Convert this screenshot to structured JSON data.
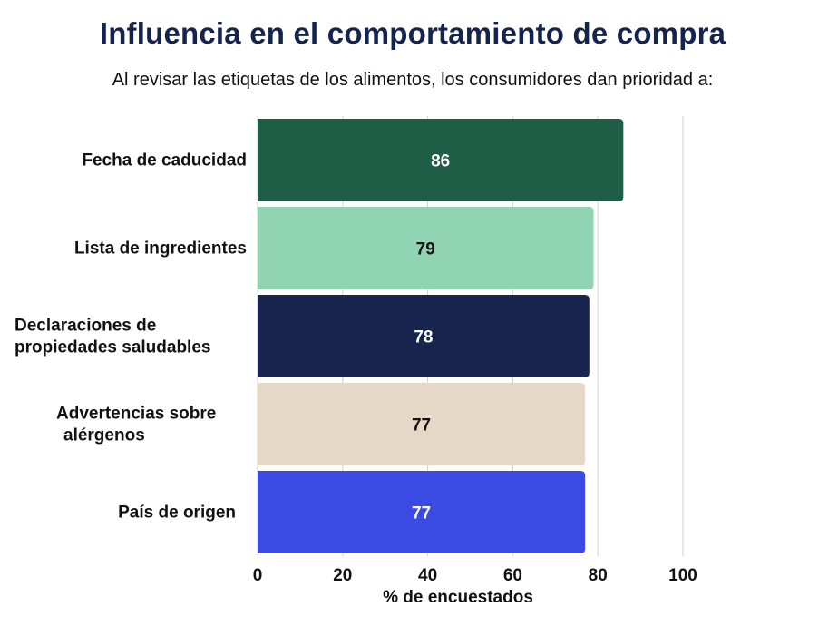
{
  "chart_data": {
    "type": "bar",
    "orientation": "horizontal",
    "title": "Influencia en el comportamiento de compra",
    "subtitle": "Al revisar las etiquetas de los alimentos, los consumidores dan prioridad a:",
    "xlabel": "% de encuestados",
    "ylabel": "",
    "xlim": [
      0,
      100
    ],
    "xticks": [
      "0",
      "20",
      "40",
      "60",
      "80",
      "100"
    ],
    "grid": true,
    "categories": [
      "Fecha de caducidad",
      "Lista de ingredientes",
      "Declaraciones de propiedades saludables",
      "Advertencias sobre alérgenos",
      "País de origen"
    ],
    "category_lines": [
      [
        "Fecha de caducidad"
      ],
      [
        "Lista de ingredientes"
      ],
      [
        "Declaraciones de",
        "propiedades saludables"
      ],
      [
        "Advertencias sobre",
        "alérgenos"
      ],
      [
        "País de origen"
      ]
    ],
    "values": [
      86,
      79,
      78,
      77,
      77
    ],
    "value_labels": [
      "86",
      "79",
      "78",
      "77",
      "77"
    ],
    "bar_colors": [
      "#1f5e46",
      "#90d4b3",
      "#17254f",
      "#e6d8c7",
      "#3a4ae3"
    ],
    "value_label_colors": [
      "#ffffff",
      "#111111",
      "#ffffff",
      "#111111",
      "#ffffff"
    ]
  }
}
